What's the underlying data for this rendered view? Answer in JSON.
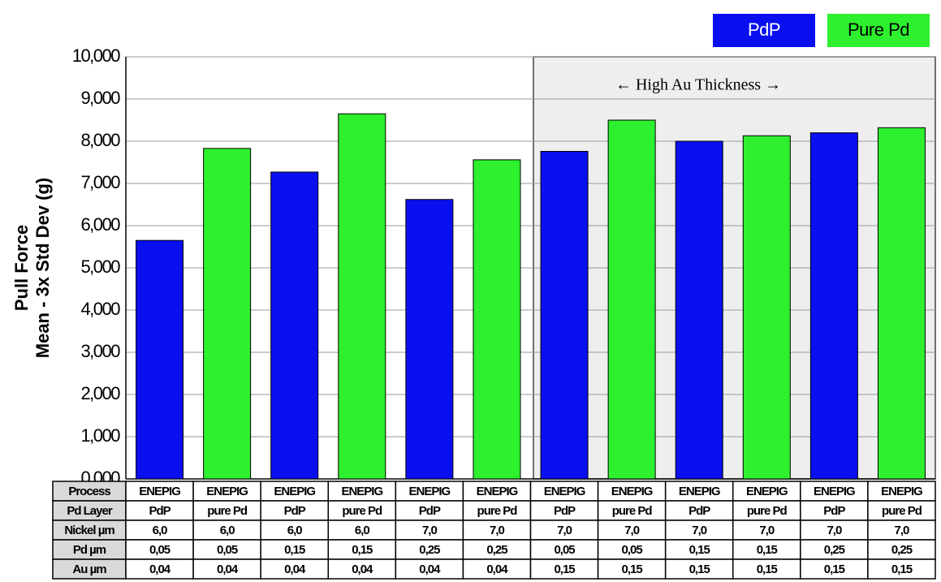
{
  "chart_data": {
    "type": "bar",
    "y_axis_label": [
      "Pull Force",
      "Mean - 3x Std Dev (g)"
    ],
    "annotation": "←  High Au Thickness  →",
    "series": [
      {
        "name": "PdP",
        "color": "#0a0ff0",
        "values": [
          5650,
          null,
          7270,
          null,
          6620,
          null,
          7760,
          null,
          8000,
          null,
          8200,
          null
        ]
      },
      {
        "name": "Pure Pd",
        "color": "#2ef02e",
        "values": [
          null,
          7830,
          null,
          8650,
          null,
          7560,
          null,
          8500,
          null,
          8130,
          null,
          8320
        ]
      }
    ],
    "ylim": [
      0,
      10000
    ],
    "yticks": [
      {
        "value": 0,
        "label": "0,000"
      },
      {
        "value": 1000,
        "label": "1,000"
      },
      {
        "value": 2000,
        "label": "2,000"
      },
      {
        "value": 3000,
        "label": "3,000"
      },
      {
        "value": 4000,
        "label": "4,000"
      },
      {
        "value": 5000,
        "label": "5,000"
      },
      {
        "value": 6000,
        "label": "6,000"
      },
      {
        "value": 7000,
        "label": "7,000"
      },
      {
        "value": 8000,
        "label": "8,000"
      },
      {
        "value": 9000,
        "label": "9,000"
      },
      {
        "value": 10000,
        "label": "10,000"
      }
    ],
    "grid": true,
    "legend": "top-right",
    "table": {
      "rows": [
        [
          "Process",
          "ENEPIG",
          "ENEPIG",
          "ENEPIG",
          "ENEPIG",
          "ENEPIG",
          "ENEPIG",
          "ENEPIG",
          "ENEPIG",
          "ENEPIG",
          "ENEPIG",
          "ENEPIG",
          "ENEPIG"
        ],
        [
          "Pd Layer",
          "PdP",
          "pure Pd",
          "PdP",
          "pure Pd",
          "PdP",
          "pure Pd",
          "PdP",
          "pure Pd",
          "PdP",
          "pure Pd",
          "PdP",
          "pure Pd"
        ],
        [
          "Nickel µm",
          "6,0",
          "6,0",
          "6,0",
          "6,0",
          "7,0",
          "7,0",
          "7,0",
          "7,0",
          "7,0",
          "7,0",
          "7,0",
          "7,0"
        ],
        [
          "Pd µm",
          "0,05",
          "0,05",
          "0,15",
          "0,15",
          "0,25",
          "0,25",
          "0,05",
          "0,05",
          "0,15",
          "0,15",
          "0,25",
          "0,25"
        ],
        [
          "Au µm",
          "0,04",
          "0,04",
          "0,04",
          "0,04",
          "0,04",
          "0,04",
          "0,15",
          "0,15",
          "0,15",
          "0,15",
          "0,15",
          "0,15"
        ]
      ]
    }
  }
}
